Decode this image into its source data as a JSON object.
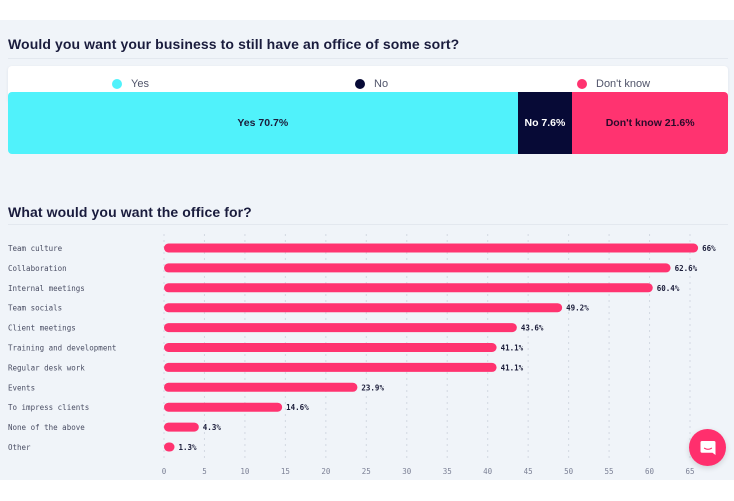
{
  "colors": {
    "yes": "#50f2fb",
    "no": "#070a36",
    "dont_know": "#ff3370",
    "bar": "#ff3370",
    "panel_bg": "#f0f4f9"
  },
  "survey1": {
    "title": "Would you want your business to still have an office of some sort?",
    "legend": [
      {
        "label": "Yes",
        "color": "#50f2fb"
      },
      {
        "label": "No",
        "color": "#070a36"
      },
      {
        "label": "Don't know",
        "color": "#ff3370"
      }
    ],
    "segments": [
      {
        "name": "Yes",
        "value": 70.7,
        "label": "Yes 70.7%",
        "color": "#50f2fb",
        "text_color": "#1b1d3a"
      },
      {
        "name": "No",
        "value": 7.6,
        "label": "No 7.6%",
        "color": "#070a36",
        "text_color": "#ffffff"
      },
      {
        "name": "Don't know",
        "value": 21.6,
        "label": "Don't know 21.6%",
        "color": "#ff3370",
        "text_color": "#2a0a2a"
      }
    ]
  },
  "chart_data": [
    {
      "type": "bar",
      "orientation": "stacked-horizontal",
      "title": "Would you want your business to still have an office of some sort?",
      "categories": [
        "Yes",
        "No",
        "Don't know"
      ],
      "values": [
        70.7,
        7.6,
        21.6
      ],
      "unit": "%",
      "legend": "top"
    },
    {
      "type": "bar",
      "orientation": "horizontal",
      "title": "What would you want the office for?",
      "categories": [
        "Team culture",
        "Collaboration",
        "Internal meetings",
        "Team socials",
        "Client meetings",
        "Training and development",
        "Regular desk work",
        "Events",
        "To impress clients",
        "None of the above",
        "Other"
      ],
      "values": [
        66,
        62.6,
        60.4,
        49.2,
        43.6,
        41.1,
        41.1,
        23.9,
        14.6,
        4.3,
        1.3
      ],
      "data_labels": [
        "66%",
        "62.6%",
        "60.4%",
        "49.2%",
        "43.6%",
        "41.1%",
        "41.1%",
        "23.9%",
        "14.6%",
        "4.3%",
        "1.3%"
      ],
      "xlim": [
        0,
        65
      ],
      "xticks": [
        0,
        5,
        10,
        15,
        20,
        25,
        30,
        35,
        40,
        45,
        50,
        55,
        60,
        65
      ],
      "xlabel": "",
      "ylabel": "",
      "grid": "vertical dashed"
    }
  ],
  "survey2": {
    "title": "What would you want the office for?"
  },
  "chat_widget": {
    "icon": "chat-bubble-icon"
  }
}
